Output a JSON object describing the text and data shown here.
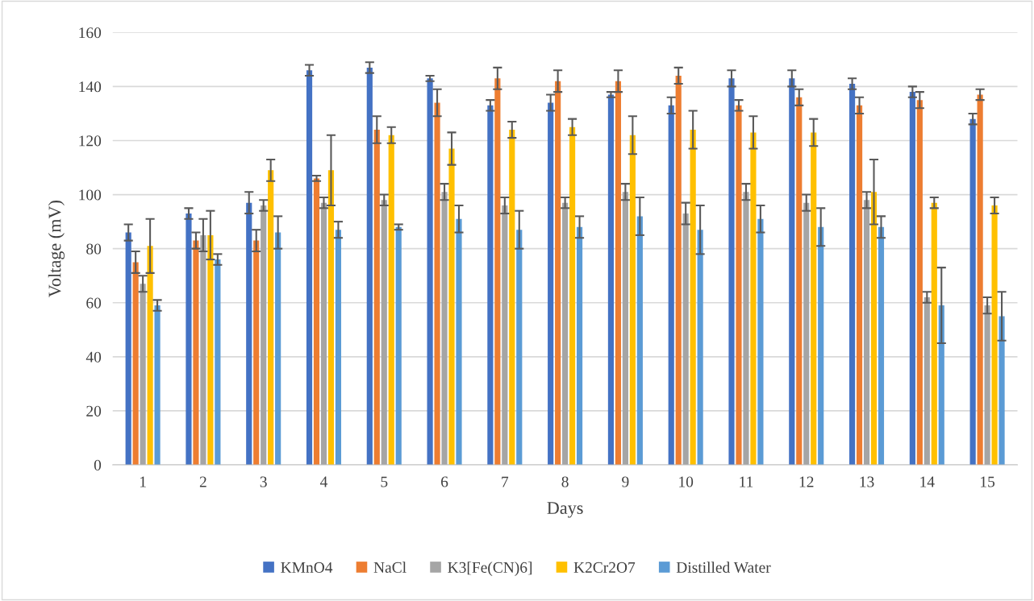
{
  "chart_data": {
    "type": "bar",
    "xlabel": "Days",
    "ylabel": "Voltage (mV)",
    "categories": [
      "1",
      "2",
      "3",
      "4",
      "5",
      "6",
      "7",
      "8",
      "9",
      "10",
      "11",
      "12",
      "13",
      "14",
      "15"
    ],
    "series": [
      {
        "name": "KMnO4",
        "color": "#4472c4",
        "values": [
          86,
          93,
          97,
          146,
          147,
          143,
          133,
          134,
          137,
          133,
          143,
          143,
          141,
          138,
          128
        ],
        "errors": [
          3,
          2,
          4,
          2,
          2,
          1,
          2,
          3,
          1,
          3,
          3,
          3,
          2,
          2,
          2
        ]
      },
      {
        "name": "NaCl",
        "color": "#ed7d31",
        "values": [
          75,
          83,
          83,
          106,
          124,
          134,
          143,
          142,
          142,
          144,
          133,
          136,
          133,
          135,
          137
        ],
        "errors": [
          4,
          3,
          4,
          1,
          5,
          5,
          4,
          4,
          4,
          3,
          2,
          3,
          3,
          3,
          2
        ]
      },
      {
        "name": "K3[Fe(CN)6]",
        "color": "#a5a5a5",
        "values": [
          67,
          85,
          96,
          97,
          98,
          101,
          96,
          97,
          101,
          93,
          101,
          97,
          98,
          62,
          59
        ],
        "errors": [
          3,
          6,
          2,
          2,
          2,
          3,
          3,
          2,
          3,
          4,
          3,
          3,
          3,
          2,
          3
        ]
      },
      {
        "name": "K2Cr2O7",
        "color": "#ffc000",
        "values": [
          81,
          85,
          109,
          109,
          122,
          117,
          124,
          125,
          122,
          124,
          123,
          123,
          101,
          97,
          96
        ],
        "errors": [
          10,
          9,
          4,
          13,
          3,
          6,
          3,
          3,
          7,
          7,
          6,
          5,
          12,
          2,
          3
        ]
      },
      {
        "name": "Distilled Water",
        "color": "#5b9bd5",
        "values": [
          59,
          76,
          86,
          87,
          88,
          91,
          87,
          88,
          92,
          87,
          91,
          88,
          88,
          59,
          55
        ],
        "errors": [
          2,
          2,
          6,
          3,
          1,
          5,
          7,
          4,
          7,
          9,
          5,
          7,
          4,
          14,
          9
        ]
      }
    ],
    "ylim": [
      0,
      160
    ],
    "yticks": [
      0,
      20,
      40,
      60,
      80,
      100,
      120,
      140,
      160
    ],
    "grid": "y",
    "legend": "bottom"
  }
}
